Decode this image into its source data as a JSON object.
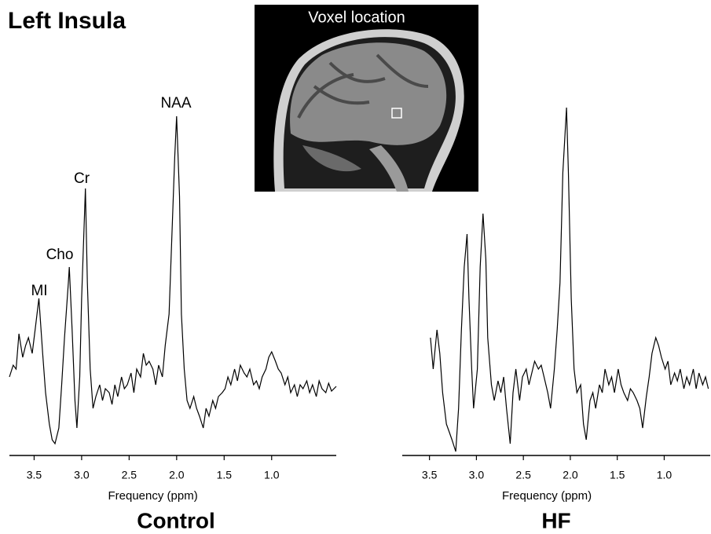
{
  "title": "Left Insula",
  "inset_label": "Voxel location",
  "chart_data": [
    {
      "type": "line",
      "caption": "Control",
      "xlabel": "Frequency (ppm)",
      "color": "#000000",
      "annotations": [
        "MI",
        "Cho",
        "Cr",
        "NAA"
      ],
      "xlim": [
        3.76,
        0.32
      ],
      "ylim": [
        0,
        450
      ],
      "xticks": [
        3.5,
        {
          "value": 3,
          "label": "3.0"
        },
        2.5,
        {
          "value": 2,
          "label": "2.0"
        },
        1.5,
        {
          "value": 1,
          "label": "1.0"
        }
      ],
      "x": [
        3.76,
        3.72,
        3.69,
        3.66,
        3.62,
        3.59,
        3.56,
        3.52,
        3.49,
        3.45,
        3.41,
        3.38,
        3.34,
        3.31,
        3.28,
        3.24,
        3.21,
        3.18,
        3.14,
        3.13,
        3.1,
        3.07,
        3.05,
        3.02,
        3.0,
        2.96,
        2.94,
        2.91,
        2.88,
        2.85,
        2.81,
        2.78,
        2.75,
        2.71,
        2.68,
        2.65,
        2.62,
        2.58,
        2.55,
        2.52,
        2.48,
        2.45,
        2.42,
        2.38,
        2.35,
        2.32,
        2.29,
        2.25,
        2.22,
        2.19,
        2.15,
        2.12,
        2.08,
        2.05,
        2.02,
        2.0,
        1.97,
        1.95,
        1.92,
        1.89,
        1.86,
        1.82,
        1.79,
        1.76,
        1.72,
        1.69,
        1.66,
        1.62,
        1.59,
        1.56,
        1.52,
        1.49,
        1.46,
        1.43,
        1.39,
        1.36,
        1.33,
        1.29,
        1.26,
        1.23,
        1.19,
        1.16,
        1.13,
        1.1,
        1.06,
        1.03,
        1.0,
        0.96,
        0.93,
        0.9,
        0.86,
        0.83,
        0.8,
        0.76,
        0.73,
        0.7,
        0.67,
        0.63,
        0.6,
        0.57,
        0.53,
        0.5,
        0.47,
        0.43,
        0.4,
        0.37,
        0.32
      ],
      "values": [
        100,
        115,
        110,
        155,
        125,
        140,
        150,
        130,
        160,
        200,
        130,
        80,
        40,
        20,
        15,
        35,
        90,
        150,
        220,
        240,
        160,
        70,
        35,
        100,
        200,
        340,
        220,
        110,
        60,
        75,
        90,
        70,
        85,
        80,
        65,
        90,
        75,
        100,
        85,
        90,
        105,
        80,
        110,
        100,
        130,
        115,
        120,
        110,
        90,
        115,
        100,
        140,
        180,
        280,
        380,
        432,
        330,
        180,
        110,
        70,
        60,
        75,
        60,
        50,
        35,
        60,
        50,
        70,
        60,
        75,
        80,
        85,
        100,
        90,
        110,
        95,
        115,
        105,
        100,
        110,
        90,
        95,
        85,
        100,
        110,
        125,
        132,
        120,
        110,
        105,
        90,
        100,
        80,
        90,
        75,
        90,
        85,
        95,
        80,
        90,
        75,
        95,
        85,
        80,
        92,
        82,
        88
      ]
    },
    {
      "type": "line",
      "caption": "HF",
      "xlabel": "Frequency (ppm)",
      "color": "#000000",
      "xlim": [
        3.79,
        0.51
      ],
      "ylim": [
        0,
        450
      ],
      "xticks": [
        3.5,
        {
          "value": 3,
          "label": "3.0"
        },
        2.5,
        {
          "value": 2,
          "label": "2.0"
        },
        1.5,
        {
          "value": 1,
          "label": "1.0"
        }
      ],
      "x": [
        3.49,
        3.46,
        3.42,
        3.39,
        3.36,
        3.32,
        3.29,
        3.26,
        3.22,
        3.19,
        3.16,
        3.13,
        3.1,
        3.08,
        3.05,
        3.03,
        2.99,
        2.96,
        2.93,
        2.9,
        2.88,
        2.84,
        2.81,
        2.77,
        2.74,
        2.71,
        2.68,
        2.64,
        2.61,
        2.58,
        2.54,
        2.51,
        2.47,
        2.44,
        2.41,
        2.38,
        2.34,
        2.31,
        2.28,
        2.24,
        2.21,
        2.17,
        2.14,
        2.11,
        2.08,
        2.04,
        2.02,
        1.99,
        1.96,
        1.93,
        1.89,
        1.86,
        1.83,
        1.79,
        1.76,
        1.73,
        1.69,
        1.66,
        1.63,
        1.59,
        1.56,
        1.53,
        1.49,
        1.46,
        1.43,
        1.39,
        1.36,
        1.33,
        1.29,
        1.26,
        1.23,
        1.19,
        1.16,
        1.13,
        1.09,
        1.06,
        1.03,
        0.99,
        0.96,
        0.93,
        0.89,
        0.86,
        0.83,
        0.79,
        0.76,
        0.73,
        0.69,
        0.66,
        0.63,
        0.59,
        0.56,
        0.53
      ],
      "values": [
        150,
        110,
        160,
        130,
        80,
        40,
        30,
        20,
        5,
        60,
        160,
        240,
        282,
        200,
        110,
        60,
        110,
        240,
        308,
        250,
        150,
        90,
        70,
        95,
        80,
        100,
        60,
        15,
        80,
        110,
        70,
        100,
        110,
        90,
        105,
        120,
        110,
        115,
        100,
        80,
        60,
        110,
        160,
        220,
        360,
        443,
        360,
        200,
        110,
        80,
        90,
        40,
        20,
        70,
        80,
        60,
        90,
        80,
        110,
        90,
        100,
        80,
        110,
        90,
        80,
        70,
        85,
        80,
        70,
        60,
        35,
        75,
        100,
        130,
        150,
        140,
        125,
        110,
        120,
        90,
        105,
        95,
        110,
        85,
        100,
        90,
        110,
        85,
        105,
        90,
        100,
        85
      ]
    }
  ]
}
